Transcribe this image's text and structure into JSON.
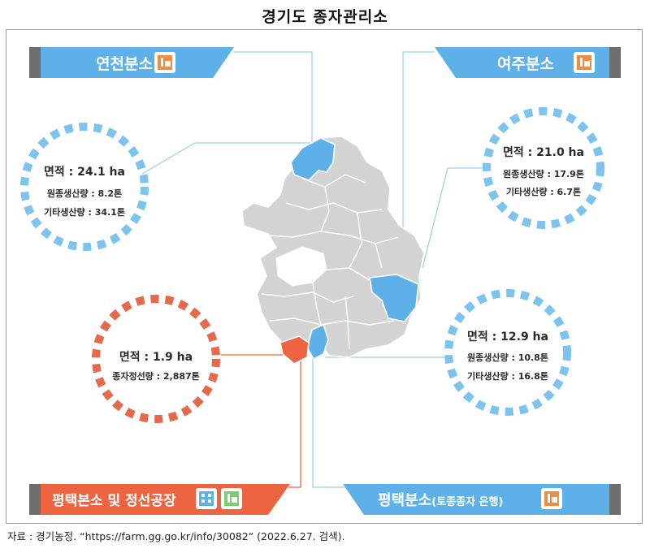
{
  "title": "경기도  종자관리소",
  "branches": {
    "yeoncheon": {
      "name": "연천분소",
      "area": "면적 : 24.1 ha",
      "line1": "원종생산량 : 8.2톤",
      "line2": "기타생산량 : 34.1톤"
    },
    "yeoju": {
      "name": "여주분소",
      "area": "면적 : 21.0 ha",
      "line1": "원종생산량 : 17.9톤",
      "line2": "기타생산량 : 6.7톤"
    },
    "pyeongtaek_main": {
      "name": "평택본소 및 정선공장",
      "area": "면적 : 1.9 ha",
      "line1": "종자정선량 : 2,887톤"
    },
    "pyeongtaek_branch": {
      "name": "평택분소",
      "name_suffix": "(토종종자 은행)",
      "area": "면적 : 12.9 ha",
      "line1": "원종생산량 : 10.8톤",
      "line2": "기타생산량 : 16.8톤"
    }
  },
  "source": "자료 : 경기농정. “https://farm.gg.go.kr/info/30082” (2022.6.27. 검색).",
  "colors": {
    "blue": "#5eb0e8",
    "blue_dark": "#3b97d9",
    "orange": "#ee6440",
    "dots_blue": "#7cc4ef",
    "dots_orange": "#e46a4b",
    "gray_map": "#d3d3d3",
    "banner_gray": "#6e6e6e"
  },
  "icons": {
    "factory": "factory-icon",
    "building": "building-icon"
  }
}
